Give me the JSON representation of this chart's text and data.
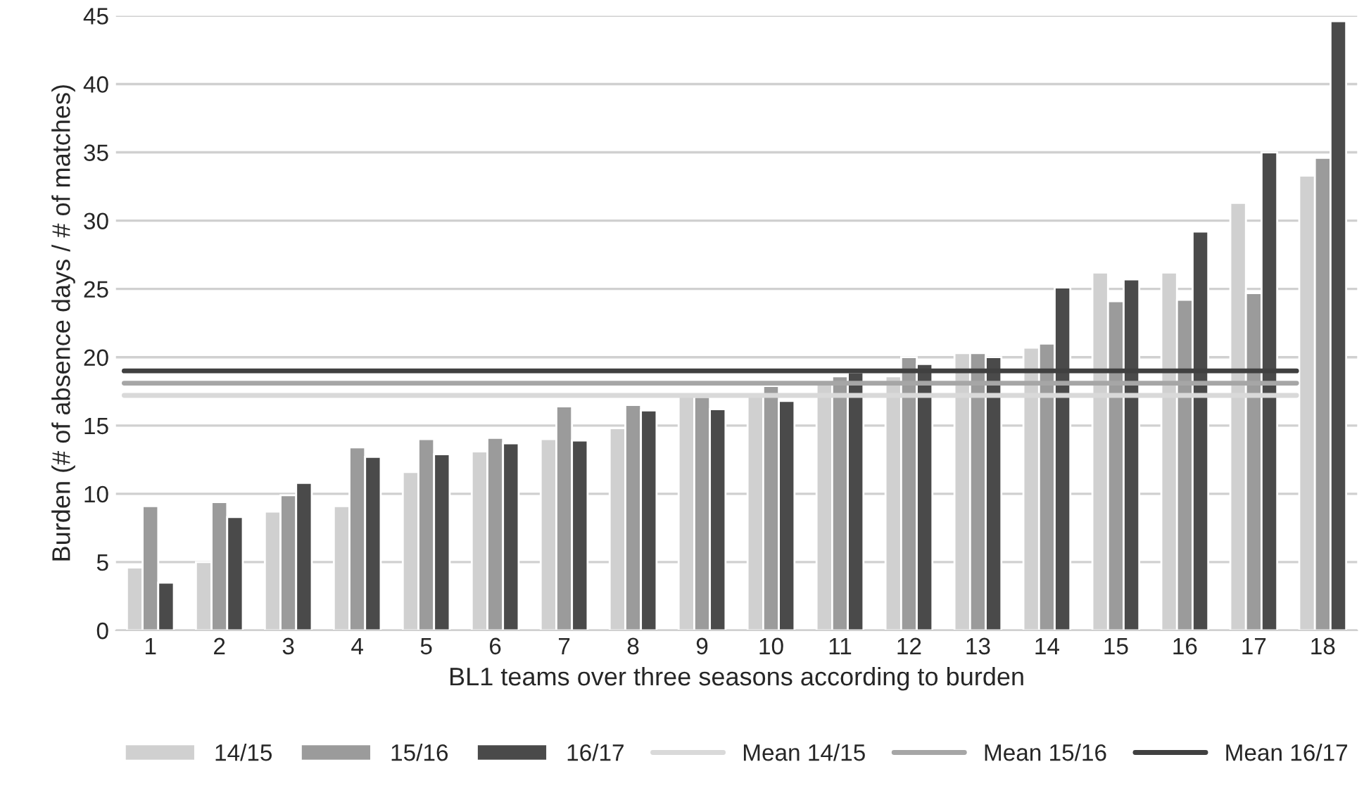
{
  "chart_data": {
    "type": "bar",
    "xlabel": "BL1 teams over three seasons according to burden",
    "ylabel": "Burden (# of absence days / # of matches)",
    "categories": [
      "1",
      "2",
      "3",
      "4",
      "5",
      "6",
      "7",
      "8",
      "9",
      "10",
      "11",
      "12",
      "13",
      "14",
      "15",
      "16",
      "17",
      "18"
    ],
    "series": [
      {
        "name": "14/15",
        "color": "#d0d0d0",
        "values": [
          4.6,
          5.0,
          8.7,
          9.1,
          11.6,
          13.1,
          14.0,
          14.8,
          17.2,
          17.4,
          18.0,
          18.6,
          20.3,
          20.7,
          26.2,
          26.2,
          31.3,
          33.3
        ]
      },
      {
        "name": "15/16",
        "color": "#9b9b9b",
        "values": [
          9.1,
          9.4,
          9.9,
          13.4,
          14.0,
          14.1,
          16.4,
          16.5,
          17.1,
          17.9,
          18.6,
          20.0,
          20.3,
          21.0,
          24.1,
          24.2,
          24.7,
          34.6
        ]
      },
      {
        "name": "16/17",
        "color": "#4a4a4a",
        "values": [
          3.5,
          8.3,
          10.8,
          12.7,
          12.9,
          13.7,
          13.9,
          16.1,
          16.2,
          16.8,
          18.9,
          19.5,
          20.0,
          25.1,
          25.7,
          29.2,
          35.0,
          44.6
        ]
      },
      {
        "name": "Mean 14/15",
        "type": "line",
        "color": "#d9d9d9",
        "values": [
          17.2,
          17.2,
          17.2,
          17.2,
          17.2,
          17.2,
          17.2,
          17.2,
          17.2,
          17.2,
          17.2,
          17.2,
          17.2,
          17.2,
          17.2,
          17.2,
          17.2,
          17.2
        ]
      },
      {
        "name": "Mean 15/16",
        "type": "line",
        "color": "#a6a6a6",
        "values": [
          18.1,
          18.1,
          18.1,
          18.1,
          18.1,
          18.1,
          18.1,
          18.1,
          18.1,
          18.1,
          18.1,
          18.1,
          18.1,
          18.1,
          18.1,
          18.1,
          18.1,
          18.1
        ]
      },
      {
        "name": "Mean 16/17",
        "type": "line",
        "color": "#404040",
        "values": [
          19.0,
          19.0,
          19.0,
          19.0,
          19.0,
          19.0,
          19.0,
          19.0,
          19.0,
          19.0,
          19.0,
          19.0,
          19.0,
          19.0,
          19.0,
          19.0,
          19.0,
          19.0
        ]
      }
    ],
    "ylim": [
      0,
      45
    ],
    "yticks": [
      0,
      5,
      10,
      15,
      20,
      25,
      30,
      35,
      40,
      45
    ],
    "grid": "y",
    "legend": "bottom"
  }
}
